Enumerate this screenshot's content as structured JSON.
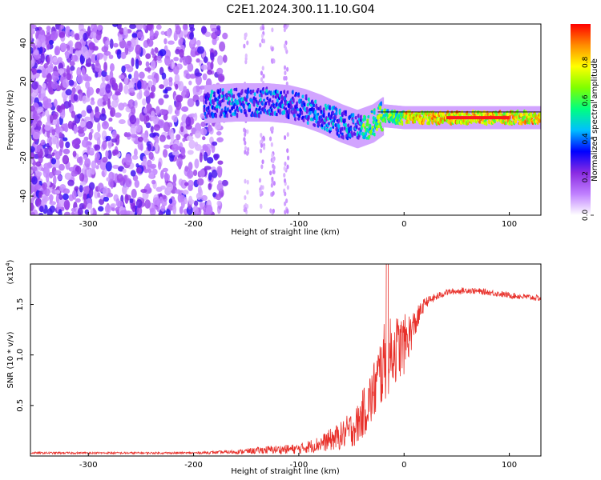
{
  "figure_title": "C2E1.2024.300.11.10.G04",
  "chart_data": [
    {
      "type": "heatmap",
      "title": "C2E1.2024.300.11.10.G04",
      "xlabel": "Height of straight line (km)",
      "ylabel": "Frequency (Hz)",
      "xlim": [
        -355,
        130
      ],
      "ylim": [
        -50,
        50
      ],
      "xticks": [
        -300,
        -200,
        -100,
        0,
        100
      ],
      "yticks": [
        -40,
        -20,
        0,
        20,
        40
      ],
      "colorbar": {
        "label": "Normalized spectral amplitude",
        "range": [
          0,
          1
        ],
        "ticks": [
          "0.0",
          "0.2",
          "0.4",
          "0.6",
          "0.8"
        ],
        "colors": [
          "#ffffff",
          "#c080ff",
          "#8a2be2",
          "#0000ff",
          "#00bfff",
          "#00ff7f",
          "#7fff00",
          "#ffff00",
          "#ff8c00",
          "#ff0000"
        ]
      },
      "center_track": [
        {
          "x": -190,
          "f": 8
        },
        {
          "x": -160,
          "f": 9
        },
        {
          "x": -130,
          "f": 9
        },
        {
          "x": -110,
          "f": 8
        },
        {
          "x": -95,
          "f": 6
        },
        {
          "x": -80,
          "f": 3
        },
        {
          "x": -60,
          "f": -2
        },
        {
          "x": -45,
          "f": -5
        },
        {
          "x": -30,
          "f": -2
        },
        {
          "x": -20,
          "f": 2
        },
        {
          "x": 0,
          "f": 1
        },
        {
          "x": 40,
          "f": 1
        },
        {
          "x": 100,
          "f": 1
        },
        {
          "x": 130,
          "f": 1
        }
      ],
      "noise_region": {
        "x_from": -355,
        "x_to": -180,
        "f_from": -50,
        "f_to": 50,
        "level": 0.2
      }
    },
    {
      "type": "line",
      "xlabel": "Height of straight line (km)",
      "ylabel": "SNR (10 * v/v)",
      "scale_note": "(x10",
      "scale_exp": "4",
      "xlim": [
        -355,
        130
      ],
      "ylim": [
        0,
        1.9
      ],
      "xticks": [
        -300,
        -200,
        -100,
        0,
        100
      ],
      "yticks": [
        "0.5",
        "1.0",
        "1.5"
      ],
      "ytick_values": [
        0.5,
        1.0,
        1.5
      ],
      "color": "#e8302a",
      "envelope": [
        {
          "x": -355,
          "mean": 0.03,
          "spread": 0.01
        },
        {
          "x": -200,
          "mean": 0.03,
          "spread": 0.01
        },
        {
          "x": -160,
          "mean": 0.04,
          "spread": 0.02
        },
        {
          "x": -130,
          "mean": 0.06,
          "spread": 0.04
        },
        {
          "x": -100,
          "mean": 0.07,
          "spread": 0.05
        },
        {
          "x": -80,
          "mean": 0.12,
          "spread": 0.08
        },
        {
          "x": -60,
          "mean": 0.2,
          "spread": 0.14
        },
        {
          "x": -45,
          "mean": 0.3,
          "spread": 0.2
        },
        {
          "x": -30,
          "mean": 0.6,
          "spread": 0.3
        },
        {
          "x": -20,
          "mean": 0.9,
          "spread": 0.4
        },
        {
          "x": -10,
          "mean": 1.05,
          "spread": 0.35
        },
        {
          "x": 0,
          "mean": 1.1,
          "spread": 0.3
        },
        {
          "x": 10,
          "mean": 1.3,
          "spread": 0.15
        },
        {
          "x": 20,
          "mean": 1.52,
          "spread": 0.05
        },
        {
          "x": 40,
          "mean": 1.62,
          "spread": 0.03
        },
        {
          "x": 60,
          "mean": 1.64,
          "spread": 0.03
        },
        {
          "x": 80,
          "mean": 1.62,
          "spread": 0.03
        },
        {
          "x": 100,
          "mean": 1.59,
          "spread": 0.03
        },
        {
          "x": 130,
          "mean": 1.56,
          "spread": 0.03
        }
      ]
    }
  ]
}
